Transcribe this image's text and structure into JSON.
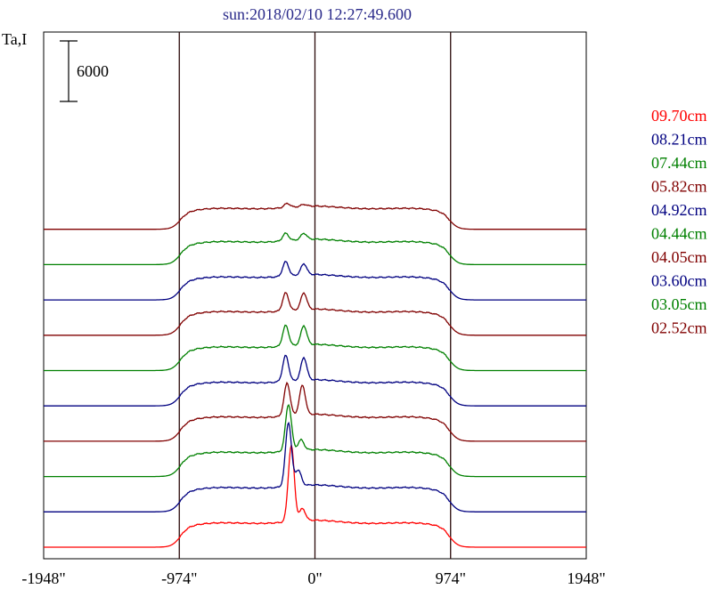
{
  "chart_data": {
    "type": "line",
    "title": "sun:2018/02/10 12:27:49.600",
    "ylabel": "Ta,I",
    "scale_bar_label": "6000",
    "scale_bar_value": 6000,
    "x_ticks": [
      "-1948\"",
      "-974\"",
      "0\"",
      "974\"",
      "1948\""
    ],
    "x_tick_values": [
      -1948,
      -974,
      0,
      974,
      1948
    ],
    "xlim": [
      -1948,
      1948
    ],
    "vlines": [
      -974,
      0,
      974
    ],
    "grid": false,
    "legend_position": "right",
    "series": [
      {
        "name": "09.70cm",
        "color": "#ff0000",
        "base_level": 0,
        "limb_height": 0.72,
        "peaks": [
          {
            "x": -170,
            "h": 2.2
          },
          {
            "x": -90,
            "h": 0.35
          }
        ]
      },
      {
        "name": "08.21cm",
        "color": "#000080",
        "base_level": 1,
        "limb_height": 0.72,
        "peaks": [
          {
            "x": -190,
            "h": 1.85
          },
          {
            "x": -120,
            "h": 0.45
          }
        ]
      },
      {
        "name": "07.44cm",
        "color": "#008000",
        "base_level": 2,
        "limb_height": 0.72,
        "peaks": [
          {
            "x": -190,
            "h": 1.35
          },
          {
            "x": -100,
            "h": 0.3
          }
        ]
      },
      {
        "name": "05.82cm",
        "color": "#800000",
        "base_level": 3,
        "limb_height": 0.72,
        "peaks": [
          {
            "x": -200,
            "h": 0.95
          },
          {
            "x": -90,
            "h": 0.85
          }
        ]
      },
      {
        "name": "04.92cm",
        "color": "#000080",
        "base_level": 4,
        "limb_height": 0.7,
        "peaks": [
          {
            "x": -210,
            "h": 0.75
          },
          {
            "x": -80,
            "h": 0.65
          }
        ]
      },
      {
        "name": "04.44cm",
        "color": "#008000",
        "base_level": 5,
        "limb_height": 0.7,
        "peaks": [
          {
            "x": -210,
            "h": 0.6
          },
          {
            "x": -80,
            "h": 0.55
          }
        ]
      },
      {
        "name": "04.05cm",
        "color": "#800000",
        "base_level": 6,
        "limb_height": 0.7,
        "peaks": [
          {
            "x": -210,
            "h": 0.52
          },
          {
            "x": -80,
            "h": 0.48
          }
        ]
      },
      {
        "name": "03.60cm",
        "color": "#000080",
        "base_level": 7,
        "limb_height": 0.68,
        "peaks": [
          {
            "x": -210,
            "h": 0.42
          },
          {
            "x": -80,
            "h": 0.32
          }
        ]
      },
      {
        "name": "03.05cm",
        "color": "#008000",
        "base_level": 8,
        "limb_height": 0.68,
        "peaks": [
          {
            "x": -210,
            "h": 0.22
          },
          {
            "x": -80,
            "h": 0.18
          }
        ]
      },
      {
        "name": "02.52cm",
        "color": "#800000",
        "base_level": 9,
        "limb_height": 0.62,
        "peaks": [
          {
            "x": -200,
            "h": 0.12
          },
          {
            "x": -80,
            "h": 0.06
          }
        ]
      }
    ]
  }
}
